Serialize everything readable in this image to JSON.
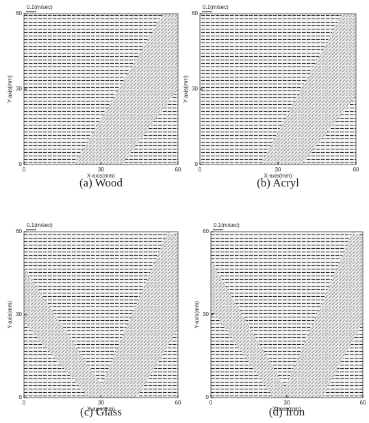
{
  "figure": {
    "panels": [
      {
        "caption": "(a)  Wood",
        "xlabel": "X-axis(mm)",
        "ylabel": "Y-axis(mm)",
        "scale_label": "0.1(m/sec)",
        "xlim": [
          0,
          60
        ],
        "ylim": [
          0,
          60
        ],
        "xticks": [
          0,
          30,
          60
        ],
        "yticks": [
          0,
          30,
          60
        ]
      },
      {
        "caption": "(b)  Acryl",
        "xlabel": "X-axis(mm)",
        "ylabel": "Y-axis(mm)",
        "scale_label": "0.1(m/sec)",
        "xlim": [
          0,
          60
        ],
        "ylim": [
          0,
          60
        ],
        "xticks": [
          0,
          30,
          60
        ],
        "yticks": [
          0,
          30,
          60
        ]
      },
      {
        "caption": "(c)  Glass",
        "xlabel": "X-axis(mm)",
        "ylabel": "Y-axis(mm)",
        "scale_label": "0.1(m/sec)",
        "xlim": [
          0,
          60
        ],
        "ylim": [
          0,
          60
        ],
        "xticks": [
          0,
          30,
          60
        ],
        "yticks": [
          0,
          30,
          60
        ]
      },
      {
        "caption": "(d)  Iron",
        "xlabel": "X-axis(mm)",
        "ylabel": "Y-axis(mm)",
        "scale_label": "0.1(m/sec)",
        "xlim": [
          0,
          60
        ],
        "ylim": [
          0,
          60
        ],
        "xticks": [
          0,
          30,
          60
        ],
        "yticks": [
          0,
          30,
          60
        ]
      }
    ]
  }
}
